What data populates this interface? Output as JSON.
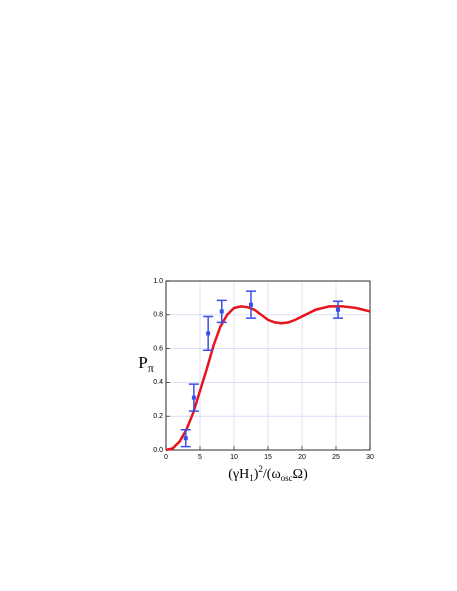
{
  "chart_data": {
    "type": "scatter_curve",
    "x_label": [
      "(γH",
      "1",
      ")",
      "2",
      "/(ω",
      "osc",
      "Ω)"
    ],
    "y_label": [
      "P",
      "π"
    ],
    "xlim": [
      0,
      30
    ],
    "ylim": [
      0,
      1
    ],
    "xticks": [
      0,
      5,
      10,
      15,
      20,
      25,
      30
    ],
    "yticks": [
      {
        "value": 0,
        "label": "0.0"
      },
      0.2,
      0.4,
      0.6,
      0.8,
      {
        "value": 1,
        "label": "1.0"
      }
    ],
    "grid": true,
    "series": [
      {
        "type": "line",
        "color": "#e8141b",
        "x": [
          0,
          1,
          2,
          3,
          4,
          5,
          6,
          7,
          8,
          9,
          10,
          11,
          12,
          13,
          14,
          15,
          16,
          17,
          18,
          19,
          20,
          21,
          22,
          23,
          24,
          25,
          26,
          27,
          28,
          29,
          30
        ],
        "values": [
          0,
          0.01,
          0.05,
          0.12,
          0.22,
          0.35,
          0.48,
          0.62,
          0.73,
          0.8,
          0.84,
          0.85,
          0.845,
          0.83,
          0.8,
          0.77,
          0.755,
          0.75,
          0.755,
          0.77,
          0.79,
          0.81,
          0.83,
          0.84,
          0.85,
          0.85,
          0.85,
          0.845,
          0.84,
          0.83,
          0.82
        ]
      },
      {
        "type": "errorbar",
        "color": "#3a4ee8",
        "x": [
          2.9,
          4.1,
          6.2,
          8.2,
          12.5,
          25.3
        ],
        "values": [
          0.07,
          0.31,
          0.69,
          0.82,
          0.86,
          0.83
        ],
        "errors": [
          0.05,
          0.08,
          0.1,
          0.065,
          0.08,
          0.05
        ]
      }
    ]
  }
}
